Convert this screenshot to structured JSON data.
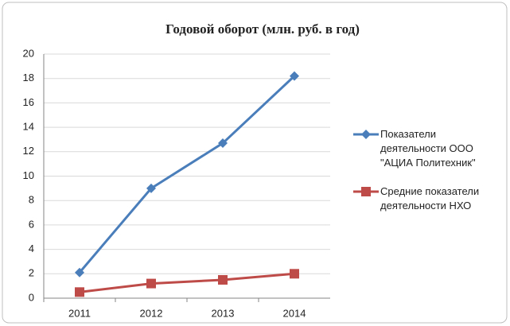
{
  "chart_data": {
    "type": "line",
    "title": "Годовой оборот (млн. руб. в год)",
    "categories": [
      "2011",
      "2012",
      "2013",
      "2014"
    ],
    "series": [
      {
        "name": "Показатели деятельности ООО \"АЦИА Политехник\"",
        "color": "#4a7ebb",
        "marker": "diamond",
        "values": [
          2.1,
          9.0,
          12.7,
          18.2
        ]
      },
      {
        "name": "Средние показатели деятельности НХО",
        "color": "#be4b48",
        "marker": "square",
        "values": [
          0.5,
          1.2,
          1.5,
          2.0
        ]
      }
    ],
    "ylim": [
      0,
      20
    ],
    "yticks": [
      0,
      2,
      4,
      6,
      8,
      10,
      12,
      14,
      16,
      18,
      20
    ],
    "grid": true,
    "legend": "right"
  }
}
